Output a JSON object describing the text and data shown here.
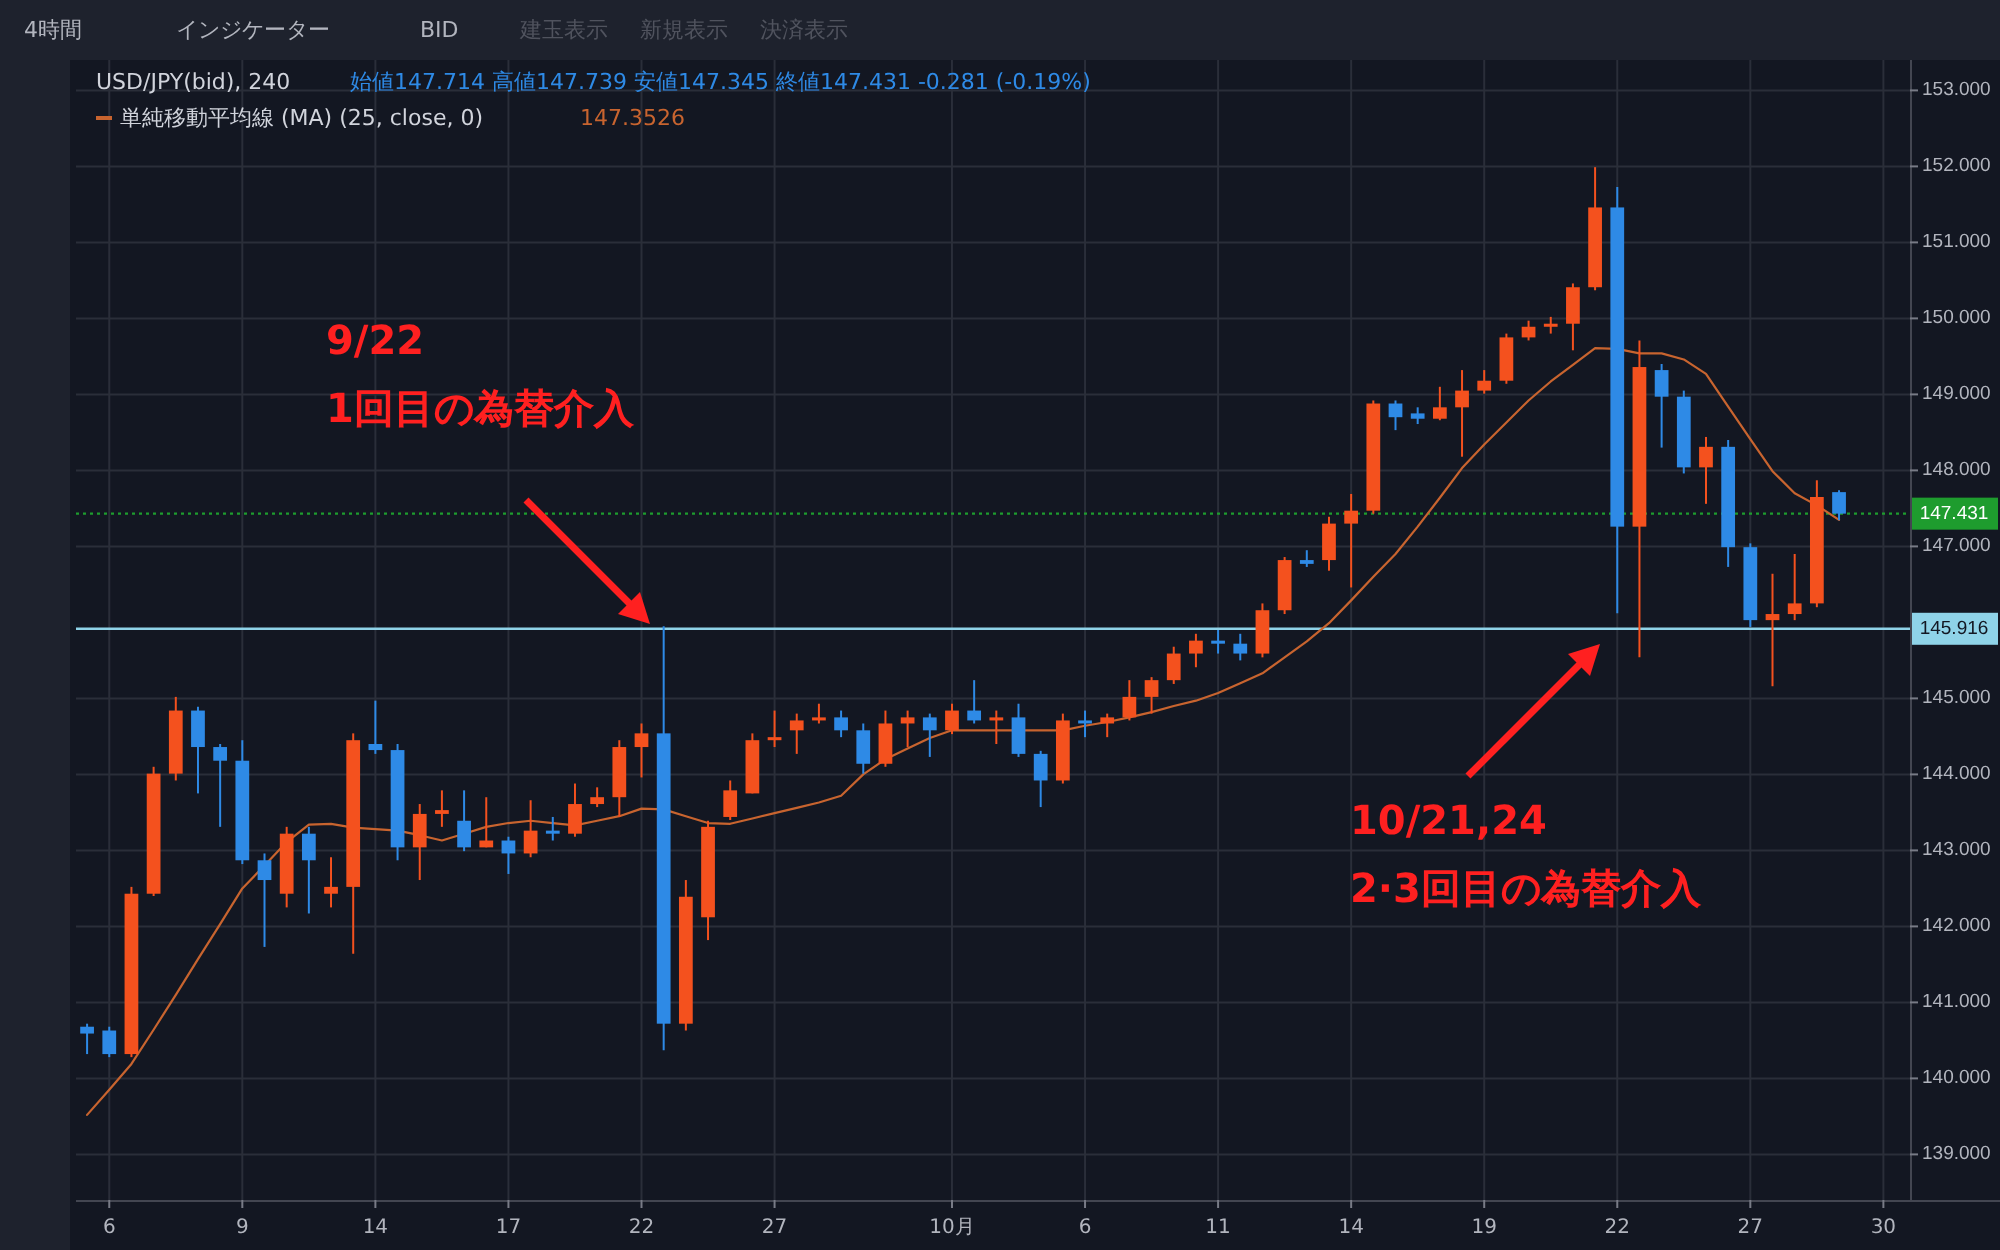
{
  "chart_data": {
    "type": "candlestick",
    "title": "USD/JPY(bid), 240",
    "subtitle": "始値147.714 高値147.739 安値147.345 終値147.431 -0.281 (-0.19%)",
    "categories": [
      null,
      "6",
      null,
      null,
      null,
      null,
      null,
      "9",
      null,
      null,
      null,
      null,
      null,
      "14",
      null,
      null,
      null,
      null,
      null,
      "17",
      null,
      null,
      null,
      null,
      null,
      "22",
      null,
      null,
      null,
      null,
      null,
      "27",
      null,
      null,
      null,
      null,
      null,
      null,
      null,
      "10月",
      null,
      null,
      null,
      null,
      null,
      "6",
      null,
      null,
      null,
      null,
      null,
      "11",
      null,
      null,
      null,
      null,
      null,
      "14",
      null,
      null,
      null,
      null,
      null,
      "19",
      null,
      null,
      null,
      null,
      null,
      "22",
      null,
      null,
      null,
      null,
      null,
      "27",
      null,
      null,
      null,
      null,
      null,
      "30"
    ],
    "ohlc": [
      [
        140.68,
        140.72,
        140.32,
        140.59
      ],
      [
        140.63,
        140.68,
        140.28,
        140.32
      ],
      [
        140.32,
        142.52,
        140.28,
        142.43
      ],
      [
        142.43,
        144.1,
        142.4,
        144.01
      ],
      [
        144.01,
        145.02,
        143.92,
        144.84
      ],
      [
        144.84,
        144.89,
        143.75,
        144.36
      ],
      [
        144.36,
        144.4,
        143.31,
        144.18
      ],
      [
        144.18,
        144.45,
        142.82,
        142.87
      ],
      [
        142.87,
        142.96,
        141.73,
        142.61
      ],
      [
        142.43,
        143.31,
        142.25,
        143.22
      ],
      [
        143.22,
        143.31,
        142.17,
        142.87
      ],
      [
        142.43,
        142.91,
        142.25,
        142.52
      ],
      [
        142.52,
        144.54,
        141.64,
        144.45
      ],
      [
        144.4,
        144.97,
        144.27,
        144.32
      ],
      [
        144.32,
        144.4,
        142.87,
        143.04
      ],
      [
        143.04,
        143.61,
        142.61,
        143.48
      ],
      [
        143.48,
        143.79,
        143.31,
        143.53
      ],
      [
        143.39,
        143.79,
        142.99,
        143.04
      ],
      [
        143.04,
        143.7,
        143.04,
        143.13
      ],
      [
        143.13,
        143.18,
        142.69,
        142.96
      ],
      [
        142.96,
        143.66,
        142.91,
        143.26
      ],
      [
        143.26,
        143.44,
        143.13,
        143.22
      ],
      [
        143.22,
        143.88,
        143.18,
        143.61
      ],
      [
        143.61,
        143.83,
        143.57,
        143.7
      ],
      [
        143.7,
        144.45,
        143.44,
        144.36
      ],
      [
        144.36,
        144.67,
        143.96,
        144.54
      ],
      [
        144.54,
        145.95,
        140.37,
        140.72
      ],
      [
        140.72,
        142.61,
        140.63,
        142.39
      ],
      [
        142.12,
        143.39,
        141.82,
        143.31
      ],
      [
        143.44,
        143.92,
        143.4,
        143.79
      ],
      [
        143.75,
        144.54,
        143.75,
        144.45
      ],
      [
        144.45,
        144.84,
        144.36,
        144.49
      ],
      [
        144.58,
        144.8,
        144.27,
        144.71
      ],
      [
        144.71,
        144.93,
        144.67,
        144.75
      ],
      [
        144.75,
        144.84,
        144.49,
        144.58
      ],
      [
        144.58,
        144.67,
        144.01,
        144.14
      ],
      [
        144.14,
        144.84,
        144.1,
        144.67
      ],
      [
        144.67,
        144.84,
        144.36,
        144.75
      ],
      [
        144.75,
        144.8,
        144.23,
        144.58
      ],
      [
        144.58,
        144.93,
        144.53,
        144.84
      ],
      [
        144.84,
        145.24,
        144.67,
        144.71
      ],
      [
        144.71,
        144.84,
        144.4,
        144.75
      ],
      [
        144.75,
        144.93,
        144.23,
        144.27
      ],
      [
        144.27,
        144.31,
        143.57,
        143.92
      ],
      [
        143.92,
        144.8,
        143.88,
        144.71
      ],
      [
        144.71,
        144.84,
        144.49,
        144.67
      ],
      [
        144.67,
        144.8,
        144.49,
        144.75
      ],
      [
        144.75,
        145.24,
        144.71,
        145.02
      ],
      [
        145.02,
        145.28,
        144.8,
        145.24
      ],
      [
        145.24,
        145.68,
        145.19,
        145.59
      ],
      [
        145.59,
        145.85,
        145.41,
        145.76
      ],
      [
        145.76,
        145.9,
        145.59,
        145.72
      ],
      [
        145.72,
        145.85,
        145.5,
        145.59
      ],
      [
        145.59,
        146.25,
        145.54,
        146.16
      ],
      [
        146.16,
        146.86,
        146.11,
        146.82
      ],
      [
        146.82,
        146.95,
        146.73,
        146.77
      ],
      [
        146.82,
        147.39,
        146.68,
        147.3
      ],
      [
        147.3,
        147.69,
        146.46,
        147.47
      ],
      [
        147.47,
        148.92,
        147.43,
        148.88
      ],
      [
        148.88,
        148.92,
        148.53,
        148.7
      ],
      [
        148.75,
        148.83,
        148.61,
        148.68
      ],
      [
        148.68,
        149.1,
        148.66,
        148.83
      ],
      [
        148.83,
        149.32,
        148.18,
        149.05
      ],
      [
        149.05,
        149.32,
        149.01,
        149.18
      ],
      [
        149.18,
        149.8,
        149.14,
        149.75
      ],
      [
        149.75,
        149.97,
        149.71,
        149.89
      ],
      [
        149.89,
        150.02,
        149.8,
        149.93
      ],
      [
        149.93,
        150.46,
        149.58,
        150.41
      ],
      [
        150.41,
        151.99,
        150.37,
        151.46
      ],
      [
        151.46,
        151.73,
        146.12,
        147.26
      ],
      [
        147.26,
        149.71,
        145.54,
        149.36
      ],
      [
        149.32,
        149.4,
        148.3,
        148.97
      ],
      [
        148.97,
        149.05,
        147.96,
        148.04
      ],
      [
        148.04,
        148.44,
        147.56,
        148.31
      ],
      [
        148.31,
        148.4,
        146.73,
        146.99
      ],
      [
        146.99,
        147.04,
        145.94,
        146.03
      ],
      [
        146.03,
        146.64,
        145.16,
        146.11
      ],
      [
        146.11,
        146.9,
        146.03,
        146.25
      ],
      [
        146.25,
        147.87,
        146.2,
        147.65
      ],
      [
        147.714,
        147.739,
        147.345,
        147.431
      ],
      null,
      null
    ],
    "colors": [
      "#2e8ae6",
      "#2e8ae6",
      "#f4511e",
      "#f4511e",
      "#f4511e",
      "#2e8ae6",
      "#2e8ae6",
      "#2e8ae6",
      "#2e8ae6",
      "#f4511e",
      "#2e8ae6",
      "#f4511e",
      "#f4511e",
      "#2e8ae6",
      "#2e8ae6",
      "#f4511e",
      "#f4511e",
      "#2e8ae6",
      "#f4511e",
      "#2e8ae6",
      "#f4511e",
      "#2e8ae6",
      "#f4511e",
      "#f4511e",
      "#f4511e",
      "#f4511e",
      "#2e8ae6",
      "#f4511e",
      "#f4511e",
      "#f4511e",
      "#f4511e",
      "#f4511e",
      "#f4511e",
      "#f4511e",
      "#2e8ae6",
      "#2e8ae6",
      "#f4511e",
      "#f4511e",
      "#2e8ae6",
      "#f4511e",
      "#2e8ae6",
      "#f4511e",
      "#2e8ae6",
      "#2e8ae6",
      "#f4511e",
      "#2e8ae6",
      "#f4511e",
      "#f4511e",
      "#f4511e",
      "#f4511e",
      "#f4511e",
      "#2e8ae6",
      "#2e8ae6",
      "#f4511e",
      "#f4511e",
      "#2e8ae6",
      "#f4511e",
      "#f4511e",
      "#f4511e",
      "#2e8ae6",
      "#2e8ae6",
      "#f4511e",
      "#f4511e",
      "#f4511e",
      "#f4511e",
      "#f4511e",
      "#f4511e",
      "#f4511e",
      "#f4511e",
      "#2e8ae6",
      "#f4511e",
      "#2e8ae6",
      "#2e8ae6",
      "#f4511e",
      "#2e8ae6",
      "#2e8ae6",
      "#f4511e",
      "#f4511e",
      "#f4511e",
      "#2e8ae6",
      null,
      null
    ],
    "series": [
      {
        "name": "単純移動平均線 (MA) (25, close, 0)",
        "type": "line",
        "color": "#c8642f",
        "values": [
          139.52,
          139.85,
          140.19,
          140.64,
          141.1,
          141.57,
          142.03,
          142.5,
          142.8,
          143.11,
          143.34,
          143.35,
          143.3,
          143.28,
          143.26,
          143.2,
          143.13,
          143.22,
          143.31,
          143.36,
          143.39,
          143.36,
          143.33,
          143.39,
          143.45,
          143.55,
          143.54,
          143.45,
          143.36,
          143.35,
          143.42,
          143.49,
          143.56,
          143.63,
          143.72,
          144.0,
          144.2,
          144.34,
          144.48,
          144.58,
          144.58,
          144.58,
          144.58,
          144.58,
          144.58,
          144.64,
          144.69,
          144.75,
          144.82,
          144.9,
          144.97,
          145.07,
          145.2,
          145.33,
          145.54,
          145.75,
          145.99,
          146.29,
          146.6,
          146.9,
          147.26,
          147.64,
          148.03,
          148.34,
          148.63,
          148.92,
          149.17,
          149.39,
          149.61,
          149.6,
          149.54,
          149.54,
          149.46,
          149.27,
          148.84,
          148.41,
          147.99,
          147.7,
          147.54,
          147.35,
          null,
          null
        ]
      }
    ],
    "ylim": [
      138.4,
      153.4
    ],
    "yticks": [
      {
        "value": 139,
        "label": "139.000"
      },
      {
        "value": 140,
        "label": "140.000"
      },
      {
        "value": 141,
        "label": "141.000"
      },
      {
        "value": 142,
        "label": "142.000"
      },
      {
        "value": 143,
        "label": "143.000"
      },
      {
        "value": 144,
        "label": "144.000"
      },
      {
        "value": 145,
        "label": "145.000"
      },
      {
        "value": 147,
        "label": "147.000"
      },
      {
        "value": 148,
        "label": "148.000"
      },
      {
        "value": 149,
        "label": "149.000"
      },
      {
        "value": 150,
        "label": "150.000"
      },
      {
        "value": 151,
        "label": "151.000"
      },
      {
        "value": 152,
        "label": "152.000"
      },
      {
        "value": 153,
        "label": "153.000"
      }
    ],
    "ref_lines": [
      {
        "axis": "y",
        "value": 147.431,
        "label": "147.431",
        "color": "#1e9c2e",
        "line_style": "dotted"
      },
      {
        "axis": "y",
        "value": 145.916,
        "label": "145.916",
        "color": "#8fd3e8",
        "line_style": "solid"
      }
    ],
    "annotations": [
      "4時間",
      "インジケーター",
      "BID",
      "建玉表示",
      "新規表示",
      "決済表示",
      "147.3526",
      "9/22\n1回目の為替介入",
      "10/21,24\n2·3回目の為替介入"
    ],
    "grid": true,
    "legend": "top left"
  }
}
